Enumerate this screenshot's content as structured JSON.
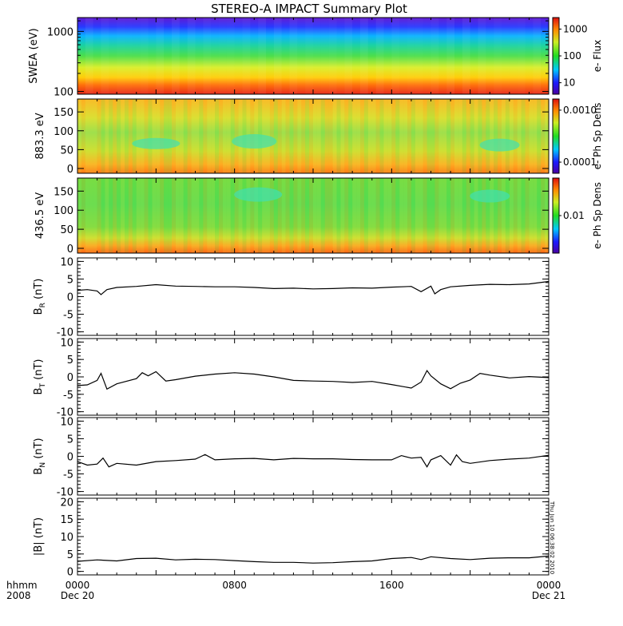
{
  "title": "STEREO-A IMPACT Summary Plot",
  "footer": {
    "left_label_1": "hhmm",
    "left_label_2": "2008",
    "timestamp": "Thu Jun 10 06:38:02 2010"
  },
  "colors": {
    "spectrogram_low": "#1a1aff",
    "spectrogram_mid": "#33dd33",
    "spectrogram_high": "#e62a10",
    "line": "#000000"
  },
  "chart_data": [
    {
      "type": "heatmap",
      "panel": "swea",
      "ylabel": "SWEA (eV)",
      "yscale": "log",
      "yticks": [
        "1000",
        "100"
      ],
      "colorbar_label": "e- Flux",
      "colorbar_ticks": [
        "1000",
        "100",
        "10"
      ],
      "colorbar_scale": "log",
      "description_rows": "energy increases upward; flux highest (red) at ~100 eV, falling to blue/purple near 1500 eV",
      "energy_profile": [
        {
          "energy_ev": 100,
          "flux_level": 1.0
        },
        {
          "energy_ev": 150,
          "flux_level": 0.85
        },
        {
          "energy_ev": 250,
          "flux_level": 0.7
        },
        {
          "energy_ev": 400,
          "flux_level": 0.5
        },
        {
          "energy_ev": 700,
          "flux_level": 0.35
        },
        {
          "energy_ev": 1000,
          "flux_level": 0.22
        },
        {
          "energy_ev": 1500,
          "flux_level": 0.05
        }
      ]
    },
    {
      "type": "heatmap",
      "panel": "pad_883",
      "ylabel": "883.3 eV",
      "yticks": [
        "150",
        "100",
        "50",
        "0"
      ],
      "ylim": [
        0,
        180
      ],
      "colorbar_label": "e- Ph Sp Dens",
      "colorbar_ticks": [
        "0.0010",
        "0.0001"
      ],
      "colorbar_scale": "log"
    },
    {
      "type": "heatmap",
      "panel": "pad_436",
      "ylabel": "436.5 eV",
      "yticks": [
        "150",
        "100",
        "50",
        "0"
      ],
      "ylim": [
        0,
        180
      ],
      "colorbar_label": "e- Ph Sp Dens",
      "colorbar_ticks": [
        "0.01"
      ],
      "colorbar_scale": "log"
    },
    {
      "type": "line",
      "panel": "br",
      "ylabel_main": "B",
      "ylabel_sub": "R",
      "ylabel_unit": "(nT)",
      "ylim": [
        -11,
        11
      ],
      "yticks": [
        "10",
        "5",
        "0",
        "-5",
        "-10"
      ],
      "x_hours": [
        0,
        0.5,
        1,
        1.2,
        1.5,
        2,
        3,
        4,
        5,
        6,
        7,
        8,
        9,
        10,
        11,
        12,
        13,
        14,
        15,
        16,
        17,
        17.5,
        18,
        18.2,
        18.5,
        19,
        20,
        21,
        22,
        23,
        24
      ],
      "y": [
        1.8,
        2.0,
        1.6,
        0.6,
        2.0,
        2.6,
        2.9,
        3.4,
        3.0,
        2.9,
        2.8,
        2.8,
        2.6,
        2.3,
        2.4,
        2.2,
        2.3,
        2.5,
        2.4,
        2.7,
        2.9,
        1.4,
        3.0,
        0.8,
        2.0,
        2.8,
        3.2,
        3.5,
        3.4,
        3.6,
        4.3
      ]
    },
    {
      "type": "line",
      "panel": "bt",
      "ylabel_main": "B",
      "ylabel_sub": "T",
      "ylabel_unit": "(nT)",
      "ylim": [
        -11,
        11
      ],
      "yticks": [
        "10",
        "5",
        "0",
        "-5",
        "-10"
      ],
      "x_hours": [
        0,
        0.5,
        1,
        1.2,
        1.5,
        2,
        3,
        3.3,
        3.6,
        4,
        4.5,
        5,
        6,
        7,
        8,
        9,
        10,
        11,
        12,
        13,
        14,
        15,
        16,
        17,
        17.5,
        17.8,
        18,
        18.5,
        19,
        19.5,
        20,
        20.5,
        21,
        22,
        23,
        24
      ],
      "y": [
        -2.5,
        -2.3,
        -1.0,
        1.0,
        -3.5,
        -2.0,
        -0.5,
        1.2,
        0.3,
        1.5,
        -1.2,
        -0.8,
        0.2,
        0.8,
        1.2,
        0.8,
        0.0,
        -1.0,
        -1.2,
        -1.3,
        -1.6,
        -1.3,
        -2.2,
        -3.2,
        -1.5,
        1.8,
        0.3,
        -2.0,
        -3.4,
        -1.8,
        -0.9,
        1.0,
        0.5,
        -0.3,
        0.1,
        -0.2
      ]
    },
    {
      "type": "line",
      "panel": "bn",
      "ylabel_main": "B",
      "ylabel_sub": "N",
      "ylabel_unit": "(nT)",
      "ylim": [
        -11,
        11
      ],
      "yticks": [
        "10",
        "5",
        "0",
        "-5",
        "-10"
      ],
      "x_hours": [
        0,
        0.5,
        1,
        1.3,
        1.6,
        2,
        3,
        4,
        5,
        6,
        6.5,
        7,
        8,
        9,
        10,
        11,
        12,
        13,
        14,
        15,
        16,
        16.5,
        17,
        17.5,
        17.8,
        18,
        18.5,
        19,
        19.3,
        19.6,
        20,
        21,
        22,
        23,
        24
      ],
      "y": [
        -1.5,
        -2.5,
        -2.2,
        -0.5,
        -3.0,
        -2.0,
        -2.5,
        -1.5,
        -1.2,
        -0.8,
        0.5,
        -1.0,
        -0.7,
        -0.6,
        -1.0,
        -0.6,
        -0.7,
        -0.7,
        -0.9,
        -1.0,
        -1.0,
        0.2,
        -0.5,
        -0.3,
        -3.0,
        -1.0,
        0.2,
        -2.5,
        0.4,
        -1.5,
        -2.0,
        -1.2,
        -0.8,
        -0.5,
        0.3
      ]
    },
    {
      "type": "line",
      "panel": "b",
      "ylabel_main": "|B| (nT)",
      "ylim": [
        -1,
        21
      ],
      "yticks": [
        "20",
        "15",
        "10",
        "5",
        "0"
      ],
      "x_hours": [
        0,
        1,
        2,
        3,
        4,
        5,
        6,
        7,
        8,
        9,
        10,
        11,
        12,
        13,
        14,
        15,
        16,
        17,
        17.5,
        18,
        19,
        20,
        21,
        22,
        23,
        24
      ],
      "y": [
        2.9,
        3.3,
        3.0,
        3.7,
        3.8,
        3.3,
        3.5,
        3.4,
        3.1,
        2.8,
        2.6,
        2.6,
        2.4,
        2.5,
        2.8,
        3.0,
        3.7,
        4.0,
        3.4,
        4.2,
        3.7,
        3.4,
        3.8,
        3.9,
        3.9,
        4.4
      ]
    }
  ],
  "xaxis": {
    "ticks": [
      {
        "hour": 0,
        "label": "0000",
        "sub": "Dec 20"
      },
      {
        "hour": 8,
        "label": "0800",
        "sub": ""
      },
      {
        "hour": 16,
        "label": "1600",
        "sub": ""
      },
      {
        "hour": 24,
        "label": "0000",
        "sub": "Dec 21"
      }
    ]
  }
}
